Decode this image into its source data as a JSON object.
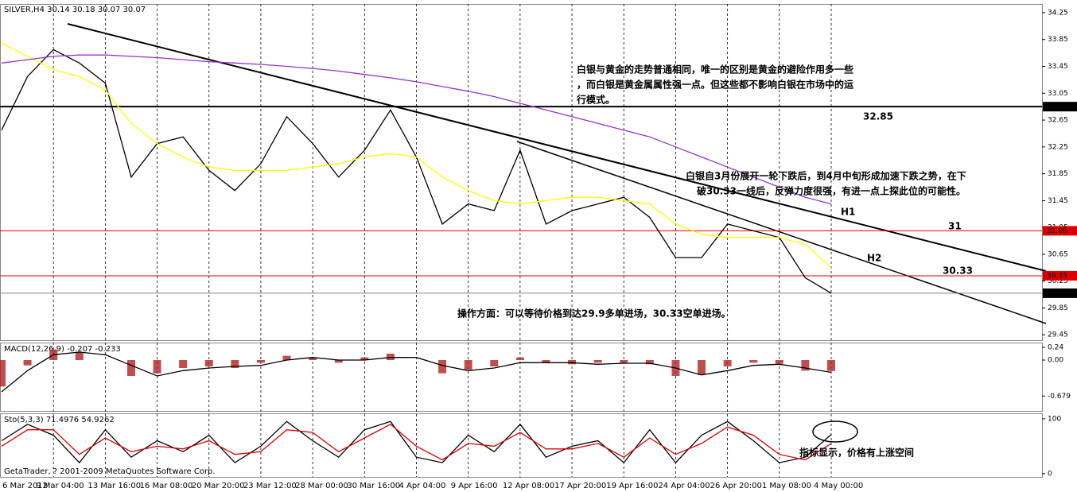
{
  "chart_data": [
    {
      "type": "line",
      "title": "SILVER,H4 30.14 30.18 30.07 30.07",
      "categories": [
        "6 Mar 2012",
        null,
        "9 Mar 04:00",
        null,
        "13 Mar 16:00",
        null,
        "16 Mar 08:00",
        null,
        "20 Mar 20:00",
        null,
        "23 Mar 12:00",
        null,
        "28 Mar 00:00",
        null,
        "30 Mar 16:00",
        null,
        "4 Apr 04:00",
        null,
        "9 Apr 16:00",
        null,
        "12 Apr 08:00",
        null,
        "17 Apr 20:00",
        null,
        "19 Apr 16:00",
        null,
        "24 Apr 04:00",
        null,
        "26 Apr 20:00",
        null,
        "1 May 08:00",
        null,
        "4 May 00:00"
      ],
      "series": [
        {
          "color": "#000000",
          "values": [
            32.5,
            33.3,
            33.7,
            33.5,
            33.2,
            31.8,
            32.3,
            32.4,
            31.9,
            31.6,
            32.0,
            32.7,
            32.3,
            31.8,
            32.2,
            32.8,
            32.1,
            31.1,
            31.4,
            31.3,
            32.2,
            31.1,
            31.3,
            31.4,
            31.5,
            31.2,
            30.6,
            30.6,
            31.1,
            31.0,
            30.9,
            30.3,
            30.07
          ]
        },
        {
          "color": "#ffff00",
          "values": [
            33.8,
            33.6,
            33.4,
            33.3,
            33.1,
            32.6,
            32.3,
            32.1,
            31.95,
            31.9,
            31.9,
            31.9,
            31.95,
            32.0,
            32.1,
            32.15,
            32.1,
            31.8,
            31.6,
            31.45,
            31.4,
            31.45,
            31.5,
            31.5,
            31.45,
            31.4,
            31.1,
            30.95,
            30.9,
            30.9,
            30.9,
            30.8,
            30.45
          ]
        },
        {
          "color": "#9933cc",
          "values": [
            33.5,
            33.55,
            33.6,
            33.62,
            33.62,
            33.6,
            33.58,
            33.55,
            33.52,
            33.5,
            33.48,
            33.45,
            33.42,
            33.38,
            33.33,
            33.28,
            33.22,
            33.15,
            33.08,
            33.0,
            32.9,
            32.8,
            32.7,
            32.6,
            32.5,
            32.4,
            32.25,
            32.1,
            31.95,
            31.8,
            31.65,
            31.5,
            31.4
          ]
        }
      ],
      "ylim": [
        29.37,
        34.38
      ],
      "yticks": [
        34.25,
        33.85,
        33.45,
        33.05,
        32.65,
        32.25,
        31.85,
        31.45,
        31.05,
        30.65,
        30.25,
        29.85,
        29.45
      ],
      "levels": [
        {
          "value": 32.85,
          "label": "32.85",
          "color": "#000000"
        },
        {
          "value": 31,
          "label": "31.00",
          "color": "#dd0000"
        },
        {
          "value": 30.33,
          "label": "30.33",
          "color": "#dd0000"
        },
        {
          "value": 30.07,
          "label": "30.07",
          "color": "#778899"
        }
      ],
      "annotations": [
        "32.85",
        "31",
        "30.33",
        "H1",
        "H2",
        "白银与黄金的走势普通相同，唯一的区别是黄金的避险作用多一些",
        "，而白银是黄金属属性强一点。但这些都不影响白银在市场中的运",
        "行模式。",
        "白银自3月份展开一轮下跌后，到4月中旬形成加速下跌之势，在下",
        "破30.33一线后，反弹力度很强，有进一点上探此位的可能性。",
        "操作方面：可以等待价格到达29.9多单进场，30.33空单进场。"
      ]
    },
    {
      "type": "macd",
      "title": "MACD(12,26,9) -0.207 -0.233",
      "series": [
        {
          "color": "#b22222",
          "values": [
            -0.5,
            -0.1,
            0.2,
            0.15,
            0.0,
            -0.3,
            -0.25,
            -0.15,
            -0.12,
            -0.15,
            -0.05,
            0.08,
            0.04,
            -0.05,
            0.05,
            0.12,
            0.0,
            -0.25,
            -0.18,
            -0.12,
            0.05,
            -0.05,
            -0.08,
            -0.05,
            -0.05,
            -0.08,
            -0.3,
            -0.28,
            -0.12,
            -0.05,
            -0.07,
            -0.2,
            -0.207
          ]
        },
        {
          "color": "#000000",
          "values": [
            -0.6,
            -0.2,
            0.1,
            0.15,
            0.1,
            -0.1,
            -0.3,
            -0.2,
            -0.15,
            -0.12,
            -0.1,
            0.0,
            0.05,
            0.0,
            0.0,
            0.05,
            0.05,
            -0.1,
            -0.2,
            -0.15,
            -0.05,
            -0.05,
            -0.05,
            -0.08,
            -0.06,
            -0.06,
            -0.15,
            -0.28,
            -0.2,
            -0.1,
            -0.08,
            -0.15,
            -0.233
          ]
        }
      ],
      "ylim": [
        -0.96,
        0.33
      ],
      "yticks": [
        0.24,
        {
          "value": 0,
          "label": "0.00"
        },
        -0.679
      ]
    },
    {
      "type": "stochastic",
      "title": "Sto(5,3,3) 71.4976 54.9262",
      "series": [
        {
          "color": "#000000",
          "values": [
            60,
            90,
            70,
            20,
            80,
            30,
            60,
            40,
            70,
            20,
            50,
            95,
            60,
            30,
            80,
            95,
            30,
            20,
            70,
            40,
            90,
            30,
            50,
            60,
            20,
            80,
            20,
            70,
            95,
            60,
            20,
            30,
            71.4976
          ]
        },
        {
          "color": "#dd0000",
          "values": [
            50,
            80,
            80,
            35,
            65,
            40,
            50,
            45,
            60,
            35,
            40,
            80,
            75,
            40,
            65,
            90,
            50,
            25,
            55,
            50,
            75,
            45,
            45,
            55,
            30,
            65,
            35,
            55,
            85,
            70,
            35,
            25,
            54.9262
          ]
        }
      ],
      "ylim": [
        -6,
        110
      ],
      "yticks": [
        100,
        0
      ],
      "annotations": [
        "指标显示，价格有上涨空间"
      ],
      "footer": "GetaTrader, ? 2001-2009 MetaQuotes Software Corp."
    }
  ]
}
